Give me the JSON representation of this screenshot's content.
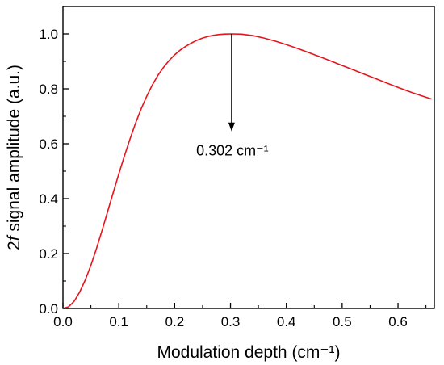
{
  "chart_data": {
    "type": "line",
    "title": "",
    "xlabel": "Modulation depth (cm⁻¹)",
    "ylabel_prefix": "2",
    "ylabel_italic": "f",
    "ylabel_rest": " signal amplitude (a.u.)",
    "xlim": [
      0.0,
      0.665
    ],
    "ylim": [
      0.0,
      1.1
    ],
    "xticks": [
      0.0,
      0.1,
      0.2,
      0.3,
      0.4,
      0.5,
      0.6
    ],
    "xtick_labels": [
      "0.0",
      "0.1",
      "0.2",
      "0.3",
      "0.4",
      "0.5",
      "0.6"
    ],
    "yticks": [
      0.0,
      0.2,
      0.4,
      0.6,
      0.8,
      1.0
    ],
    "ytick_labels": [
      "0.0",
      "0.2",
      "0.4",
      "0.6",
      "0.8",
      "1.0"
    ],
    "grid": false,
    "series": [
      {
        "color": "#e8141c",
        "x": [
          0.0,
          0.01,
          0.02,
          0.03,
          0.04,
          0.05,
          0.06,
          0.07,
          0.08,
          0.09,
          0.1,
          0.11,
          0.12,
          0.13,
          0.14,
          0.15,
          0.16,
          0.17,
          0.18,
          0.19,
          0.2,
          0.21,
          0.22,
          0.23,
          0.24,
          0.25,
          0.26,
          0.27,
          0.28,
          0.29,
          0.302,
          0.32,
          0.34,
          0.36,
          0.38,
          0.4,
          0.42,
          0.44,
          0.46,
          0.48,
          0.5,
          0.52,
          0.54,
          0.56,
          0.58,
          0.6,
          0.62,
          0.64,
          0.66
        ],
        "y": [
          0.0,
          0.006,
          0.026,
          0.06,
          0.104,
          0.157,
          0.218,
          0.284,
          0.353,
          0.422,
          0.49,
          0.555,
          0.617,
          0.675,
          0.727,
          0.773,
          0.814,
          0.849,
          0.878,
          0.903,
          0.924,
          0.941,
          0.955,
          0.967,
          0.977,
          0.985,
          0.991,
          0.995,
          0.998,
          0.9995,
          1.0,
          0.999,
          0.994,
          0.985,
          0.974,
          0.961,
          0.947,
          0.932,
          0.917,
          0.901,
          0.885,
          0.869,
          0.853,
          0.837,
          0.821,
          0.805,
          0.79,
          0.776,
          0.763
        ]
      }
    ],
    "annotation": {
      "text": "0.302 cm⁻¹",
      "x": 0.302,
      "y_from": 1.0,
      "y_to": 0.645
    }
  }
}
